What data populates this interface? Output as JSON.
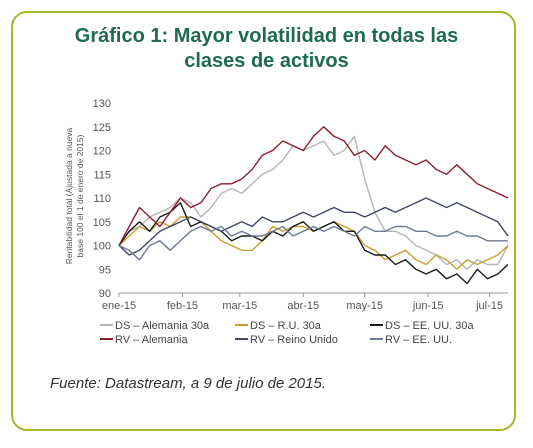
{
  "title_line1": "Gráfico 1: Mayor volatilidad en todas las",
  "title_line2": "clases de activos",
  "source": "Fuente: Datastream, a 9 de julio de 2015.",
  "chart_data": {
    "type": "line",
    "ylabel_line1": "Rentabilidad total (Ajustada a nueva",
    "ylabel_line2": "base 100 el 1 de enero de 2015)",
    "ylim": [
      90,
      130
    ],
    "yticks": [
      90,
      95,
      100,
      105,
      110,
      115,
      120,
      125,
      130
    ],
    "xlim": [
      0,
      190
    ],
    "xticks": [
      {
        "label": "ene-15",
        "x": 0
      },
      {
        "label": "feb-15",
        "x": 31
      },
      {
        "label": "mar-15",
        "x": 59
      },
      {
        "label": "abr-15",
        "x": 90
      },
      {
        "label": "may-15",
        "x": 120
      },
      {
        "label": "jun-15",
        "x": 151
      },
      {
        "label": "jul-15",
        "x": 181
      }
    ],
    "grid": false,
    "legend_position": "bottom",
    "series": [
      {
        "name": "DS – Alemania 30a",
        "color": "#b5b5b5",
        "x": [
          0,
          5,
          10,
          15,
          20,
          25,
          30,
          35,
          40,
          45,
          50,
          55,
          60,
          65,
          70,
          75,
          80,
          85,
          90,
          95,
          100,
          105,
          110,
          115,
          120,
          125,
          130,
          135,
          140,
          145,
          150,
          155,
          160,
          165,
          170,
          175,
          180,
          185,
          190
        ],
        "y": [
          100,
          103,
          104,
          106,
          107,
          108,
          110,
          109,
          106,
          108,
          111,
          112,
          111,
          113,
          115,
          116,
          118,
          121,
          120,
          121,
          122,
          119,
          120,
          123,
          114,
          107,
          103,
          103,
          102,
          100,
          99,
          98,
          96,
          97,
          95,
          97,
          96,
          96,
          100
        ]
      },
      {
        "name": "DS – R.U. 30a",
        "color": "#c8a030",
        "x": [
          0,
          5,
          10,
          15,
          20,
          25,
          30,
          35,
          40,
          45,
          50,
          55,
          60,
          65,
          70,
          75,
          80,
          85,
          90,
          95,
          100,
          105,
          110,
          115,
          120,
          125,
          130,
          135,
          140,
          145,
          150,
          155,
          160,
          165,
          170,
          175,
          180,
          185,
          190
        ],
        "y": [
          100,
          102,
          104,
          103,
          105,
          104,
          106,
          106,
          105,
          103,
          101,
          100,
          99,
          99,
          101,
          104,
          103,
          104,
          104,
          103,
          104,
          105,
          104,
          103,
          100,
          99,
          97,
          98,
          99,
          97,
          96,
          98,
          97,
          95,
          97,
          96,
          97,
          98,
          100
        ]
      },
      {
        "name": "DS – EE. UU. 30a",
        "color": "#1a1a1a",
        "x": [
          0,
          5,
          10,
          15,
          20,
          25,
          30,
          35,
          40,
          45,
          50,
          55,
          60,
          65,
          70,
          75,
          80,
          85,
          90,
          95,
          100,
          105,
          110,
          115,
          120,
          125,
          130,
          135,
          140,
          145,
          150,
          155,
          160,
          165,
          170,
          175,
          180,
          185,
          190
        ],
        "y": [
          100,
          103,
          105,
          103,
          106,
          107,
          109,
          104,
          105,
          104,
          103,
          101,
          102,
          102,
          101,
          103,
          102,
          104,
          105,
          103,
          104,
          105,
          103,
          103,
          99,
          98,
          98,
          96,
          97,
          95,
          94,
          95,
          93,
          94,
          92,
          95,
          93,
          94,
          96
        ]
      },
      {
        "name": "RV – Alemania",
        "color": "#8b1f2c",
        "x": [
          0,
          5,
          10,
          15,
          20,
          25,
          30,
          35,
          40,
          45,
          50,
          55,
          60,
          65,
          70,
          75,
          80,
          85,
          90,
          95,
          100,
          105,
          110,
          115,
          120,
          125,
          130,
          135,
          140,
          145,
          150,
          155,
          160,
          165,
          170,
          175,
          180,
          185,
          190
        ],
        "y": [
          100,
          104,
          108,
          106,
          104,
          107,
          110,
          108,
          109,
          112,
          113,
          113,
          114,
          116,
          119,
          120,
          122,
          121,
          120,
          123,
          125,
          123,
          122,
          119,
          120,
          118,
          121,
          119,
          118,
          117,
          118,
          116,
          115,
          117,
          115,
          113,
          112,
          111,
          110
        ]
      },
      {
        "name": "RV – Reino Unido",
        "color": "#3e4863",
        "x": [
          0,
          5,
          10,
          15,
          20,
          25,
          30,
          35,
          40,
          45,
          50,
          55,
          60,
          65,
          70,
          75,
          80,
          85,
          90,
          95,
          100,
          105,
          110,
          115,
          120,
          125,
          130,
          135,
          140,
          145,
          150,
          155,
          160,
          165,
          170,
          175,
          180,
          185,
          190
        ],
        "y": [
          100,
          98,
          99,
          101,
          103,
          104,
          105,
          106,
          105,
          104,
          103,
          104,
          105,
          104,
          106,
          105,
          105,
          106,
          107,
          106,
          107,
          108,
          107,
          107,
          106,
          107,
          108,
          107,
          108,
          109,
          110,
          109,
          108,
          109,
          108,
          107,
          106,
          105,
          102
        ]
      },
      {
        "name": "RV – EE. UU.",
        "color": "#6d7a8f",
        "x": [
          0,
          5,
          10,
          15,
          20,
          25,
          30,
          35,
          40,
          45,
          50,
          55,
          60,
          65,
          70,
          75,
          80,
          85,
          90,
          95,
          100,
          105,
          110,
          115,
          120,
          125,
          130,
          135,
          140,
          145,
          150,
          155,
          160,
          165,
          170,
          175,
          180,
          185,
          190
        ],
        "y": [
          100,
          99,
          97,
          100,
          101,
          99,
          101,
          103,
          104,
          103,
          104,
          102,
          103,
          102,
          102,
          103,
          104,
          102,
          103,
          104,
          103,
          104,
          103,
          102,
          104,
          103,
          103,
          104,
          104,
          103,
          103,
          102,
          102,
          103,
          102,
          102,
          101,
          101,
          101
        ]
      }
    ]
  }
}
